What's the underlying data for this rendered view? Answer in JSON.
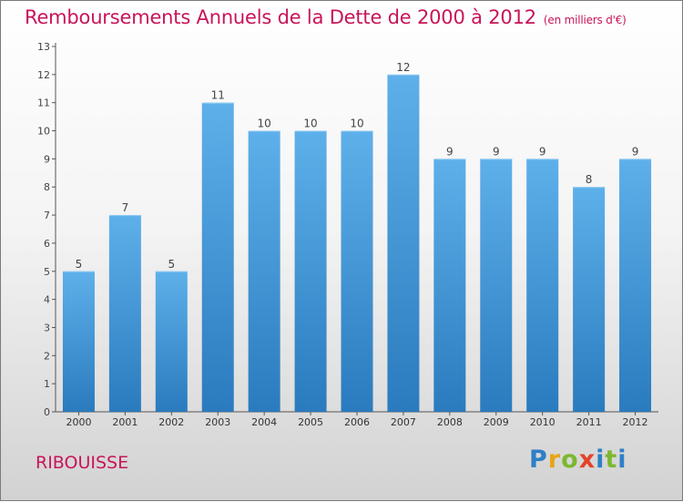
{
  "header": {
    "title": "Remboursements Annuels de la Dette de 2000 à 2012",
    "unit": "(en milliers d'€)"
  },
  "footer": {
    "commune": "RIBOUISSE",
    "logo": "Proxiti"
  },
  "colors": {
    "title": "#c8145a",
    "bar_top": "#5eb0ea",
    "bar_bottom": "#2a7bbe",
    "logo_p": "#2f7fc6",
    "logo_r": "#e8a418",
    "logo_o": "#7cb82f",
    "logo_x": "#e4432b",
    "logo_i": "#2f7fc6",
    "logo_t": "#7cb82f"
  },
  "chart_data": {
    "type": "bar",
    "title": "Remboursements Annuels de la Dette de 2000 à 2012",
    "categories": [
      "2000",
      "2001",
      "2002",
      "2003",
      "2004",
      "2005",
      "2006",
      "2007",
      "2008",
      "2009",
      "2010",
      "2011",
      "2012"
    ],
    "values": [
      5,
      7,
      5,
      11,
      10,
      10,
      10,
      12,
      9,
      9,
      9,
      8,
      9
    ],
    "ylim": [
      0,
      13
    ],
    "yticks": [
      0,
      1,
      2,
      3,
      4,
      5,
      6,
      7,
      8,
      9,
      10,
      11,
      12,
      13
    ],
    "grid": false,
    "data_labels": true
  }
}
